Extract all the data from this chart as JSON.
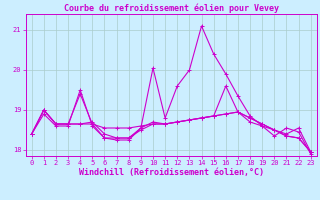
{
  "title": "Courbe du refroidissement éolien pour Vevey",
  "xlabel": "Windchill (Refroidissement éolien,°C)",
  "background_color": "#cceeff",
  "grid_color": "#aacccc",
  "line_color": "#cc00cc",
  "xlim": [
    -0.5,
    23.5
  ],
  "ylim": [
    17.85,
    21.4
  ],
  "xticks": [
    0,
    1,
    2,
    3,
    4,
    5,
    6,
    7,
    8,
    9,
    10,
    11,
    12,
    13,
    14,
    15,
    16,
    17,
    18,
    19,
    20,
    21,
    22,
    23
  ],
  "yticks": [
    18,
    19,
    20,
    21
  ],
  "lines": [
    {
      "x": [
        0,
        1,
        2,
        3,
        4,
        5,
        6,
        7,
        8,
        9,
        10,
        11,
        12,
        13,
        14,
        15,
        16,
        17,
        18,
        19,
        20,
        21,
        22,
        23
      ],
      "y": [
        18.4,
        18.9,
        18.6,
        18.6,
        19.5,
        18.6,
        18.3,
        18.25,
        18.25,
        18.55,
        20.05,
        18.8,
        19.6,
        20.0,
        21.1,
        20.4,
        19.9,
        19.35,
        18.85,
        18.6,
        18.35,
        18.55,
        18.45,
        17.9
      ]
    },
    {
      "x": [
        0,
        1,
        2,
        3,
        4,
        5,
        6,
        7,
        8,
        9,
        10,
        11,
        12,
        13,
        14,
        15,
        16,
        17,
        18,
        19,
        20,
        21,
        22,
        23
      ],
      "y": [
        18.4,
        19.0,
        18.65,
        18.65,
        18.65,
        18.65,
        18.55,
        18.55,
        18.55,
        18.6,
        18.65,
        18.65,
        18.7,
        18.75,
        18.8,
        18.85,
        18.9,
        18.95,
        18.7,
        18.6,
        18.5,
        18.35,
        18.3,
        17.95
      ]
    },
    {
      "x": [
        0,
        1,
        2,
        3,
        4,
        5,
        6,
        7,
        8,
        9,
        10,
        11,
        12,
        13,
        14,
        15,
        16,
        17,
        18,
        19,
        20,
        21,
        22,
        23
      ],
      "y": [
        18.4,
        19.0,
        18.65,
        18.65,
        18.65,
        18.7,
        18.4,
        18.3,
        18.3,
        18.5,
        18.65,
        18.65,
        18.7,
        18.75,
        18.8,
        18.85,
        18.9,
        18.95,
        18.8,
        18.65,
        18.5,
        18.35,
        18.3,
        17.95
      ]
    },
    {
      "x": [
        0,
        1,
        2,
        3,
        4,
        5,
        6,
        7,
        8,
        9,
        10,
        11,
        12,
        13,
        14,
        15,
        16,
        17,
        18,
        19,
        20,
        21,
        22,
        23
      ],
      "y": [
        18.4,
        19.0,
        18.65,
        18.65,
        19.4,
        18.65,
        18.3,
        18.3,
        18.3,
        18.55,
        18.7,
        18.65,
        18.7,
        18.75,
        18.8,
        18.85,
        19.6,
        18.95,
        18.8,
        18.65,
        18.5,
        18.4,
        18.55,
        17.95
      ]
    }
  ],
  "marker": "+",
  "markersize": 3,
  "linewidth": 0.8,
  "title_color": "#cc00cc",
  "tick_color": "#cc00cc",
  "axis_color": "#cc00cc",
  "tick_fontsize": 5.0,
  "xlabel_fontsize": 6.0,
  "title_fontsize": 6.0
}
